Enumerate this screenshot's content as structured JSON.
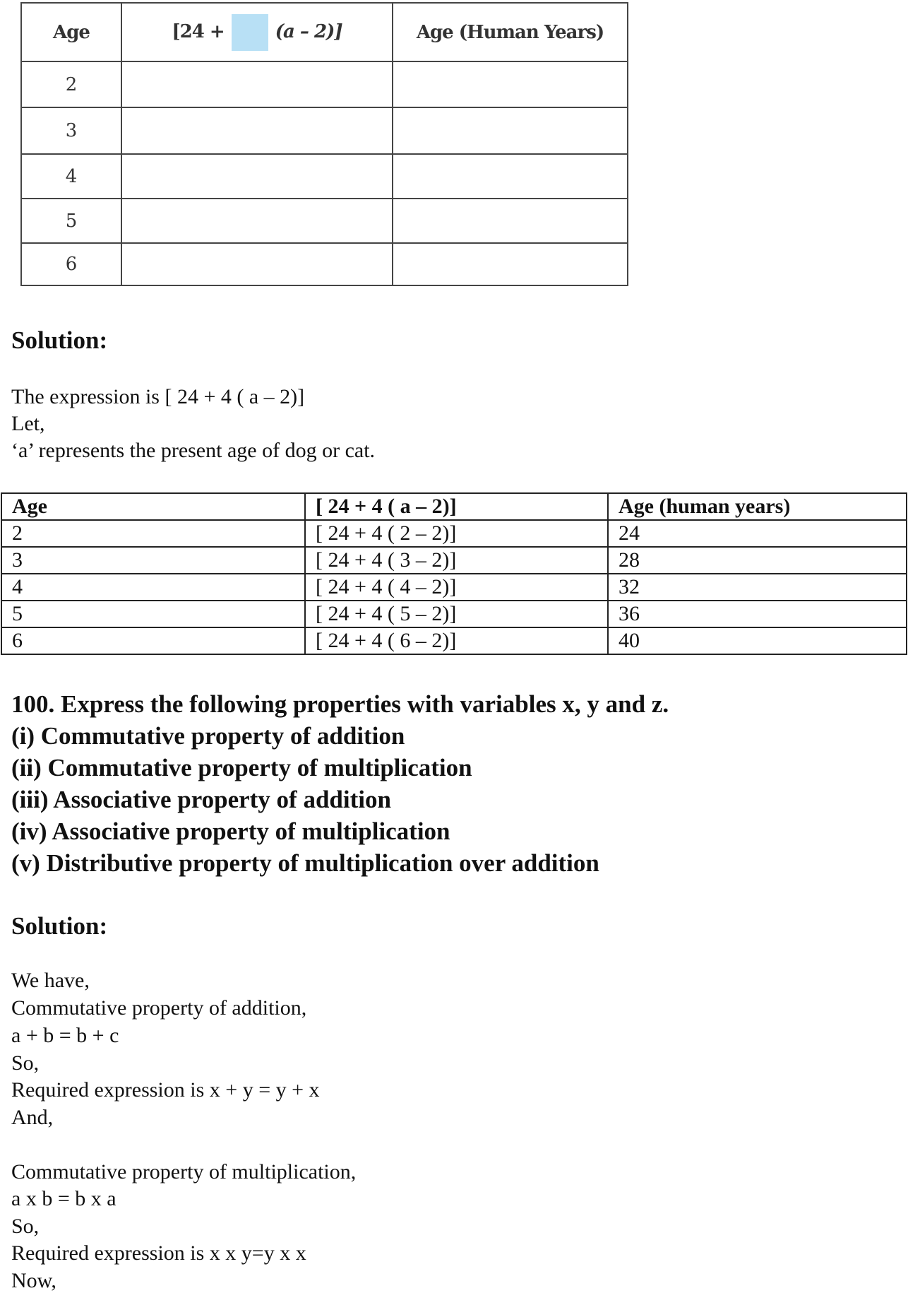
{
  "exercise_table": {
    "headers": [
      "Age",
      "[24 +",
      "(a – 2)]",
      "Age (Human Years)"
    ],
    "rows": [
      "2",
      "3",
      "4",
      "5",
      "6"
    ]
  },
  "solution1": {
    "heading": "Solution:",
    "lines": [
      "The expression is [ 24 + 4 ( a – 2)]",
      "Let,",
      "‘a’ represents the present age of dog or cat."
    ]
  },
  "answer_table": {
    "headers": [
      "Age",
      "[ 24 + 4 ( a – 2)]",
      "Age (human years)"
    ],
    "rows": [
      [
        "2",
        "[ 24 + 4 ( 2 – 2)]",
        "24"
      ],
      [
        "3",
        "[ 24 + 4 ( 3 – 2)]",
        "28"
      ],
      [
        "4",
        "[ 24 + 4 ( 4 – 2)]",
        "32"
      ],
      [
        "5",
        "[ 24 + 4 ( 5 – 2)]",
        "36"
      ],
      [
        "6",
        "[ 24 + 4 ( 6 – 2)]",
        "40"
      ]
    ]
  },
  "question100": {
    "lines": [
      "100. Express the following properties with variables x, y and z.",
      "(i) Commutative property of addition",
      "(ii) Commutative property of multiplication",
      "(iii) Associative property of addition",
      "(iv) Associative property of multiplication",
      "(v) Distributive property of multiplication over addition"
    ]
  },
  "solution2": {
    "heading": "Solution:",
    "lines": [
      "We have,",
      "Commutative property of addition,",
      "a + b = b + c",
      "So,",
      "Required expression is x + y = y + x",
      "And,",
      "Commutative property of multiplication,",
      "a x b = b x a",
      "So,",
      "Required expression is x x y=y x x",
      "Now,"
    ]
  }
}
